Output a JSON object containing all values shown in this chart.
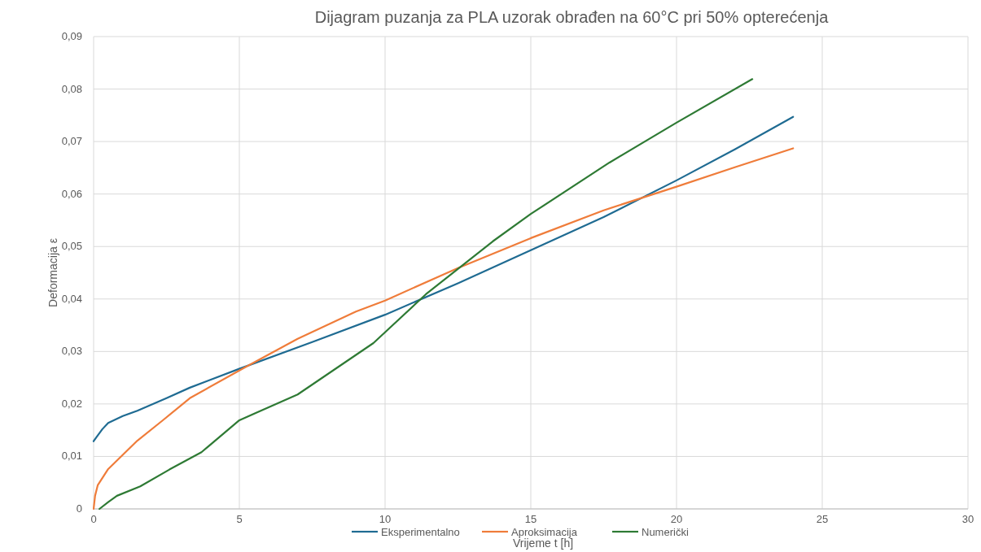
{
  "chart_data": {
    "type": "line",
    "title": "Dijagram puzanja za PLA uzorak obrađen na 60°C pri 50% opterećenja",
    "xlabel": "Vrijeme t [h]",
    "ylabel": "Deformacija ε",
    "xlim": [
      0,
      30
    ],
    "xticks": [
      0,
      5,
      10,
      15,
      20,
      25,
      30
    ],
    "ylim": [
      0,
      0.09
    ],
    "yticks": [
      {
        "value": 0,
        "label": "0"
      },
      {
        "value": 0.01,
        "label": "0,01"
      },
      {
        "value": 0.02,
        "label": "0,02"
      },
      {
        "value": 0.03,
        "label": "0,03"
      },
      {
        "value": 0.04,
        "label": "0,04"
      },
      {
        "value": 0.05,
        "label": "0,05"
      },
      {
        "value": 0.06,
        "label": "0,06"
      },
      {
        "value": 0.07,
        "label": "0,07"
      },
      {
        "value": 0.08,
        "label": "0,08"
      },
      {
        "value": 0.09,
        "label": "0,09"
      }
    ],
    "grid": true,
    "legend": "bottom",
    "line_style": "solid",
    "series": [
      {
        "name": "Eksperimentalno",
        "color": "#1f6b92",
        "x": [
          0,
          0.1,
          0.3,
          0.5,
          1,
          1.5,
          2.5,
          3.3,
          5,
          7.5,
          10,
          12.5,
          15,
          17.5,
          20,
          22,
          24
        ],
        "values": [
          0.0129,
          0.0137,
          0.0152,
          0.0164,
          0.0177,
          0.0187,
          0.0211,
          0.0231,
          0.0267,
          0.0318,
          0.037,
          0.043,
          0.0493,
          0.0556,
          0.0626,
          0.0685,
          0.0747
        ]
      },
      {
        "name": "Aproksimacija",
        "color": "#ef7c3a",
        "x": [
          0,
          0.05,
          0.14,
          0.5,
          1,
          1.5,
          2.4,
          3.3,
          5.2,
          7,
          9,
          10,
          12.5,
          15,
          17.5,
          20,
          22,
          24
        ],
        "values": [
          0,
          0.0025,
          0.0045,
          0.0076,
          0.0103,
          0.013,
          0.017,
          0.0211,
          0.027,
          0.0324,
          0.0376,
          0.0397,
          0.0459,
          0.0516,
          0.0569,
          0.0614,
          0.0651,
          0.0687
        ]
      },
      {
        "name": "Numerički",
        "color": "#2e7a34",
        "x": [
          0.2,
          0.5,
          0.8,
          1.6,
          2.6,
          3.7,
          5,
          7,
          9.6,
          11.4,
          13.7,
          15,
          17.7,
          20,
          22.6
        ],
        "values": [
          0,
          0.0013,
          0.0025,
          0.0043,
          0.0075,
          0.0108,
          0.0169,
          0.0218,
          0.0316,
          0.0409,
          0.051,
          0.0562,
          0.066,
          0.0736,
          0.0819
        ]
      }
    ]
  }
}
